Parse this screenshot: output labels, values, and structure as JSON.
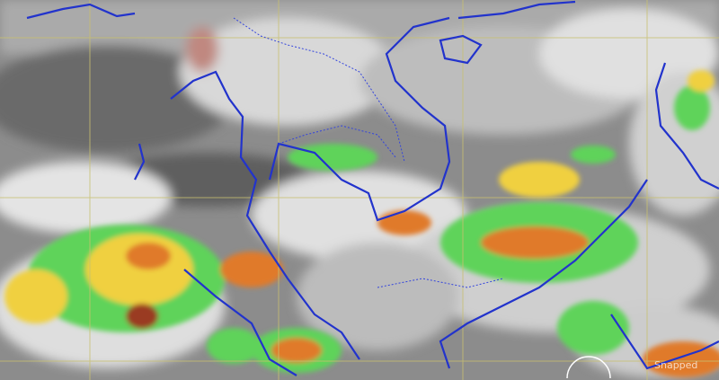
{
  "map": {
    "kind": "infrared satellite image",
    "colors": {
      "background": "#8a8a8a",
      "cloud_light": "#e8e8e8",
      "rain_light": "#5fd35a",
      "rain_medium": "#f0d040",
      "rain_heavy": "#e07a2a",
      "rain_extreme": "#9a3a20",
      "coastline": "#2233cc",
      "grid": "#c8c070"
    },
    "watermark": "Snapped"
  }
}
